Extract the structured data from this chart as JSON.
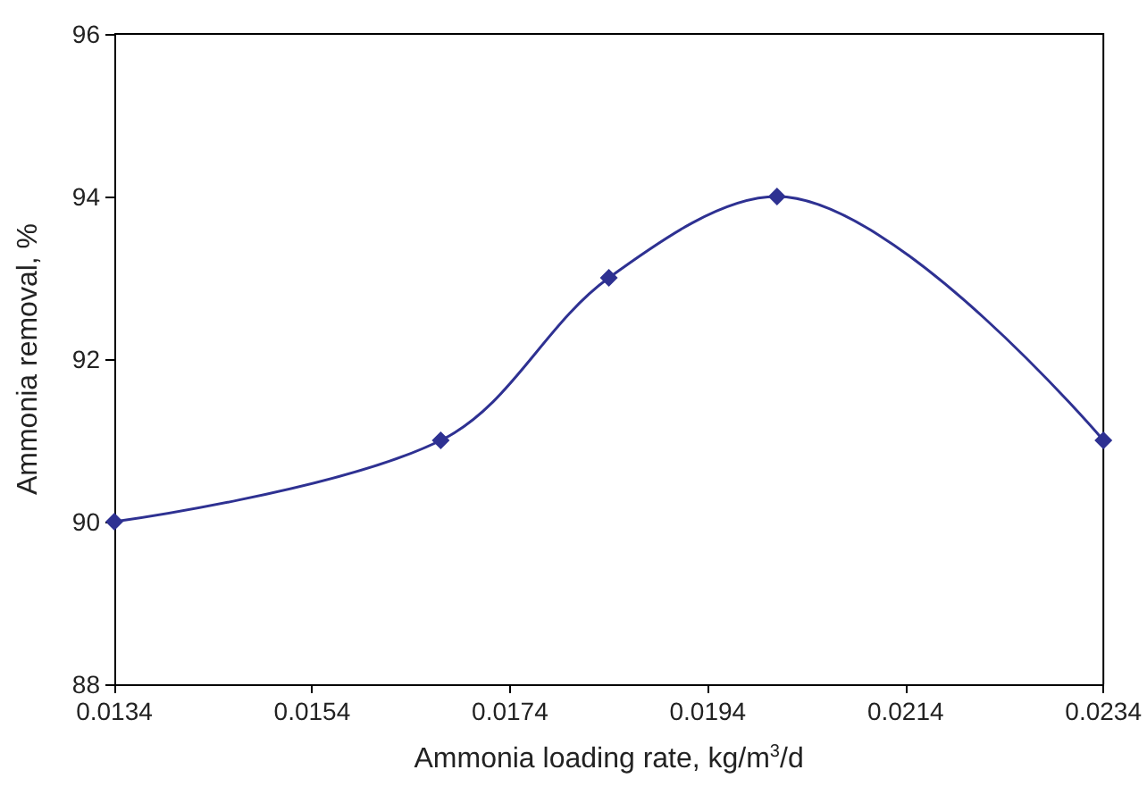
{
  "chart_data": {
    "type": "line",
    "xlabel": "Ammonia loading rate, kg/m$^{3}$/d",
    "ylabel": "Ammonia removal, %",
    "x": [
      0.0134,
      0.0167,
      0.0184,
      0.0201,
      0.0234
    ],
    "series": [
      {
        "color": "#2e3192",
        "values": [
          90,
          91,
          93,
          94,
          91
        ]
      }
    ],
    "xlim": [
      0.0134,
      0.0234
    ],
    "xticks": [
      0.0134,
      0.0154,
      0.0174,
      0.0194,
      0.0214,
      0.0234
    ],
    "ylim": [
      88,
      96
    ],
    "yticks": [
      88,
      90,
      92,
      94,
      96
    ],
    "grid": false,
    "marker": "diamond",
    "line_style": "solid"
  }
}
